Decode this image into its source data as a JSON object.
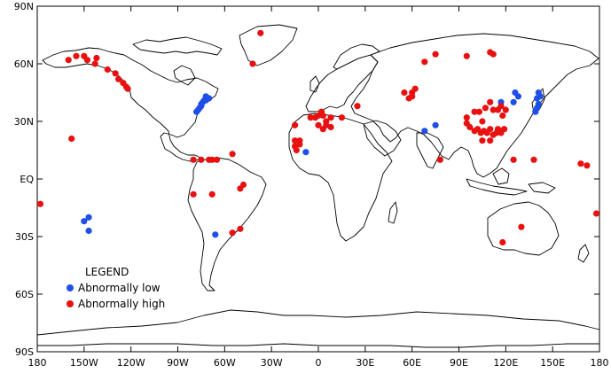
{
  "map": {
    "lon_range": [
      -180,
      180
    ],
    "lat_range": [
      -90,
      90
    ],
    "lat_ticks": [
      {
        "value": 90,
        "label": "90N"
      },
      {
        "value": 60,
        "label": "60N"
      },
      {
        "value": 30,
        "label": "30N"
      },
      {
        "value": 0,
        "label": "EQ"
      },
      {
        "value": -30,
        "label": "30S"
      },
      {
        "value": -60,
        "label": "60S"
      },
      {
        "value": -90,
        "label": "90S"
      }
    ],
    "lon_ticks": [
      {
        "value": -180,
        "label": "180"
      },
      {
        "value": -150,
        "label": "150W"
      },
      {
        "value": -120,
        "label": "120W"
      },
      {
        "value": -90,
        "label": "90W"
      },
      {
        "value": -60,
        "label": "60W"
      },
      {
        "value": -30,
        "label": "30W"
      },
      {
        "value": 0,
        "label": "0"
      },
      {
        "value": 30,
        "label": "30E"
      },
      {
        "value": 60,
        "label": "60E"
      },
      {
        "value": 90,
        "label": "90E"
      },
      {
        "value": 120,
        "label": "120E"
      },
      {
        "value": 150,
        "label": "150E"
      },
      {
        "value": 180,
        "label": "180"
      }
    ],
    "colors": {
      "low": "#1f4fe6",
      "high": "#e81010",
      "coast": "#000000"
    }
  },
  "legend": {
    "title": "LEGEND",
    "placement": "bottom-left",
    "items": [
      {
        "key": "low",
        "label": "Abnormally low"
      },
      {
        "key": "high",
        "label": "Abnormally high"
      }
    ]
  },
  "points": {
    "low": [
      [
        -78,
        35
      ],
      [
        -77,
        36
      ],
      [
        -76,
        37
      ],
      [
        -75,
        38
      ],
      [
        -75,
        39
      ],
      [
        -74,
        40
      ],
      [
        -73,
        41
      ],
      [
        -72,
        41
      ],
      [
        -71,
        42
      ],
      [
        -70,
        42
      ],
      [
        -72,
        43
      ],
      [
        -150,
        -22
      ],
      [
        -147,
        -20
      ],
      [
        -147,
        -27
      ],
      [
        -66,
        -29
      ],
      [
        -8,
        14
      ],
      [
        68,
        25
      ],
      [
        75,
        28
      ],
      [
        117,
        40
      ],
      [
        126,
        45
      ],
      [
        128,
        43
      ],
      [
        125,
        40
      ],
      [
        141,
        45
      ],
      [
        140,
        42
      ],
      [
        142,
        43
      ],
      [
        141,
        39
      ],
      [
        140,
        37
      ],
      [
        139,
        35
      ]
    ],
    "high": [
      [
        -178,
        -13
      ],
      [
        -158,
        21
      ],
      [
        -160,
        62
      ],
      [
        -155,
        64
      ],
      [
        -150,
        64
      ],
      [
        -148,
        62
      ],
      [
        -142,
        63
      ],
      [
        -143,
        60
      ],
      [
        -135,
        57
      ],
      [
        -130,
        55
      ],
      [
        -128,
        52
      ],
      [
        -125,
        50
      ],
      [
        -123,
        48
      ],
      [
        -122,
        47
      ],
      [
        -37,
        76
      ],
      [
        -42,
        60
      ],
      [
        -80,
        10
      ],
      [
        -75,
        10
      ],
      [
        -70,
        10
      ],
      [
        -68,
        10
      ],
      [
        -65,
        10
      ],
      [
        -55,
        13
      ],
      [
        -80,
        -8
      ],
      [
        -68,
        -8
      ],
      [
        -50,
        -5
      ],
      [
        -48,
        -3
      ],
      [
        -55,
        -28
      ],
      [
        -50,
        -26
      ],
      [
        -15,
        28
      ],
      [
        -15,
        20
      ],
      [
        -12,
        20
      ],
      [
        -12,
        18
      ],
      [
        -15,
        17
      ],
      [
        -14,
        15
      ],
      [
        -5,
        32
      ],
      [
        -2,
        32
      ],
      [
        0,
        33
      ],
      [
        3,
        33
      ],
      [
        5,
        30
      ],
      [
        8,
        32
      ],
      [
        2,
        35
      ],
      [
        0,
        28
      ],
      [
        3,
        26
      ],
      [
        5,
        28
      ],
      [
        8,
        27
      ],
      [
        15,
        32
      ],
      [
        25,
        38
      ],
      [
        55,
        45
      ],
      [
        58,
        42
      ],
      [
        60,
        45
      ],
      [
        62,
        47
      ],
      [
        60,
        43
      ],
      [
        68,
        61
      ],
      [
        75,
        65
      ],
      [
        95,
        64
      ],
      [
        110,
        66
      ],
      [
        112,
        65
      ],
      [
        95,
        32
      ],
      [
        95,
        29
      ],
      [
        97,
        27
      ],
      [
        100,
        25
      ],
      [
        102,
        26
      ],
      [
        104,
        24
      ],
      [
        106,
        25
      ],
      [
        108,
        24
      ],
      [
        110,
        26
      ],
      [
        112,
        23
      ],
      [
        114,
        24
      ],
      [
        115,
        26
      ],
      [
        117,
        24
      ],
      [
        119,
        26
      ],
      [
        105,
        30
      ],
      [
        100,
        35
      ],
      [
        103,
        35
      ],
      [
        107,
        37
      ],
      [
        110,
        40
      ],
      [
        112,
        36
      ],
      [
        115,
        36
      ],
      [
        118,
        33
      ],
      [
        120,
        36
      ],
      [
        117,
        38
      ],
      [
        105,
        20
      ],
      [
        110,
        20
      ],
      [
        125,
        10
      ],
      [
        138,
        10
      ],
      [
        130,
        -25
      ],
      [
        118,
        -33
      ],
      [
        168,
        8
      ],
      [
        172,
        7
      ],
      [
        178,
        -18
      ],
      [
        78,
        10
      ]
    ]
  }
}
